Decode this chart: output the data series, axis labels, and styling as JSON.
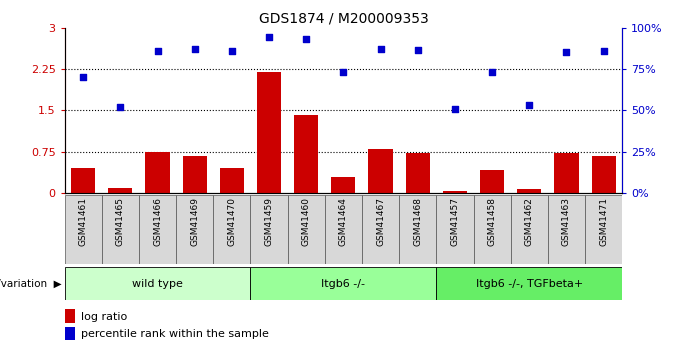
{
  "title": "GDS1874 / M200009353",
  "samples": [
    "GSM41461",
    "GSM41465",
    "GSM41466",
    "GSM41469",
    "GSM41470",
    "GSM41459",
    "GSM41460",
    "GSM41464",
    "GSM41467",
    "GSM41468",
    "GSM41457",
    "GSM41458",
    "GSM41462",
    "GSM41463",
    "GSM41471"
  ],
  "log_ratio": [
    0.45,
    0.1,
    0.75,
    0.68,
    0.45,
    2.2,
    1.42,
    0.3,
    0.8,
    0.72,
    0.04,
    0.42,
    0.08,
    0.72,
    0.68
  ],
  "percentile_rank": [
    2.1,
    1.56,
    2.57,
    2.62,
    2.57,
    2.83,
    2.8,
    2.19,
    2.62,
    2.6,
    1.52,
    2.2,
    1.6,
    2.55,
    2.57
  ],
  "groups": [
    {
      "label": "wild type",
      "start": 0,
      "end": 5,
      "color": "#ccffcc"
    },
    {
      "label": "Itgb6 -/-",
      "start": 5,
      "end": 10,
      "color": "#99ff99"
    },
    {
      "label": "Itgb6 -/-, TGFbeta+",
      "start": 10,
      "end": 15,
      "color": "#66ee66"
    }
  ],
  "bar_color": "#cc0000",
  "dot_color": "#0000cc",
  "left_yticks": [
    0,
    0.75,
    1.5,
    2.25,
    3.0
  ],
  "left_yticklabels": [
    "0",
    "0.75",
    "1.5",
    "2.25",
    "3"
  ],
  "right_yticklabels": [
    "0%",
    "25%",
    "50%",
    "75%",
    "100%"
  ],
  "ylim": [
    0,
    3.0
  ],
  "dotted_lines": [
    0.75,
    1.5,
    2.25
  ],
  "sample_box_color": "#d8d8d8",
  "legend_items": [
    {
      "color": "#cc0000",
      "label": "log ratio"
    },
    {
      "color": "#0000cc",
      "label": "percentile rank within the sample"
    }
  ]
}
